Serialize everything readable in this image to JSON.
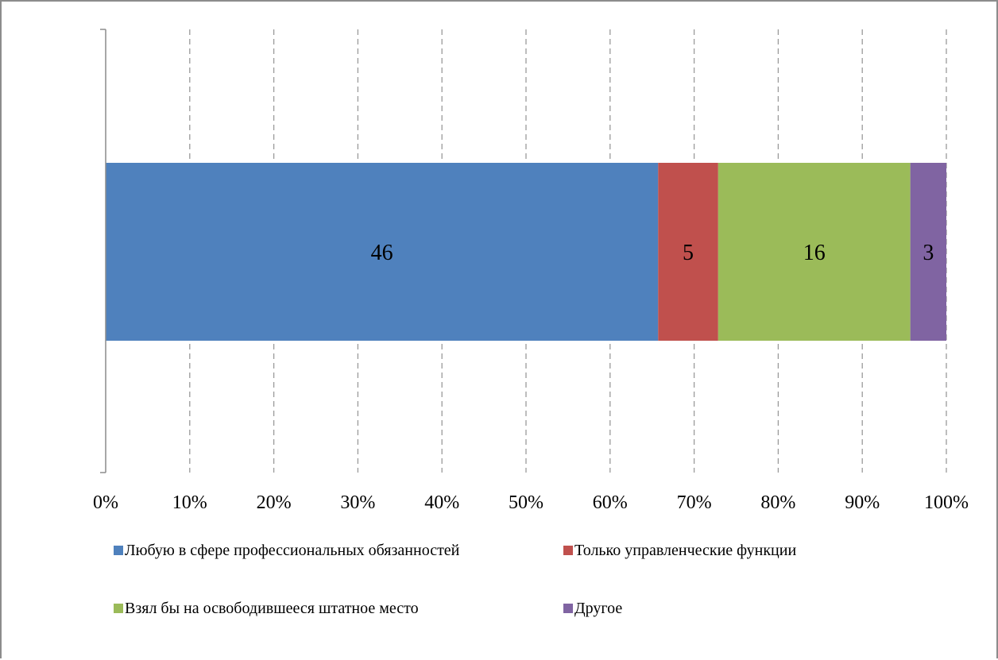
{
  "chart_data": {
    "type": "bar",
    "orientation": "horizontal",
    "stacked": "percent",
    "title": "",
    "xlabel": "",
    "ylabel": "",
    "xlim": [
      0,
      100
    ],
    "x_ticks": [
      "0%",
      "10%",
      "20%",
      "30%",
      "40%",
      "50%",
      "60%",
      "70%",
      "80%",
      "90%",
      "100%"
    ],
    "grid": "vertical dashed",
    "categories": [
      ""
    ],
    "series": [
      {
        "name": "Любую в сфере профессиональных обязанностей",
        "values": [
          46
        ],
        "color": "#4F81BD"
      },
      {
        "name": "Только управленческие функции",
        "values": [
          5
        ],
        "color": "#C0504D"
      },
      {
        "name": "Взял бы на освободившееся штатное место",
        "values": [
          16
        ],
        "color": "#9BBB59"
      },
      {
        "name": "Другое",
        "values": [
          3
        ],
        "color": "#8064A2"
      }
    ],
    "data_labels": [
      "46",
      "5",
      "16",
      "3"
    ],
    "legend": {
      "position": "bottom",
      "columns": 2
    }
  }
}
